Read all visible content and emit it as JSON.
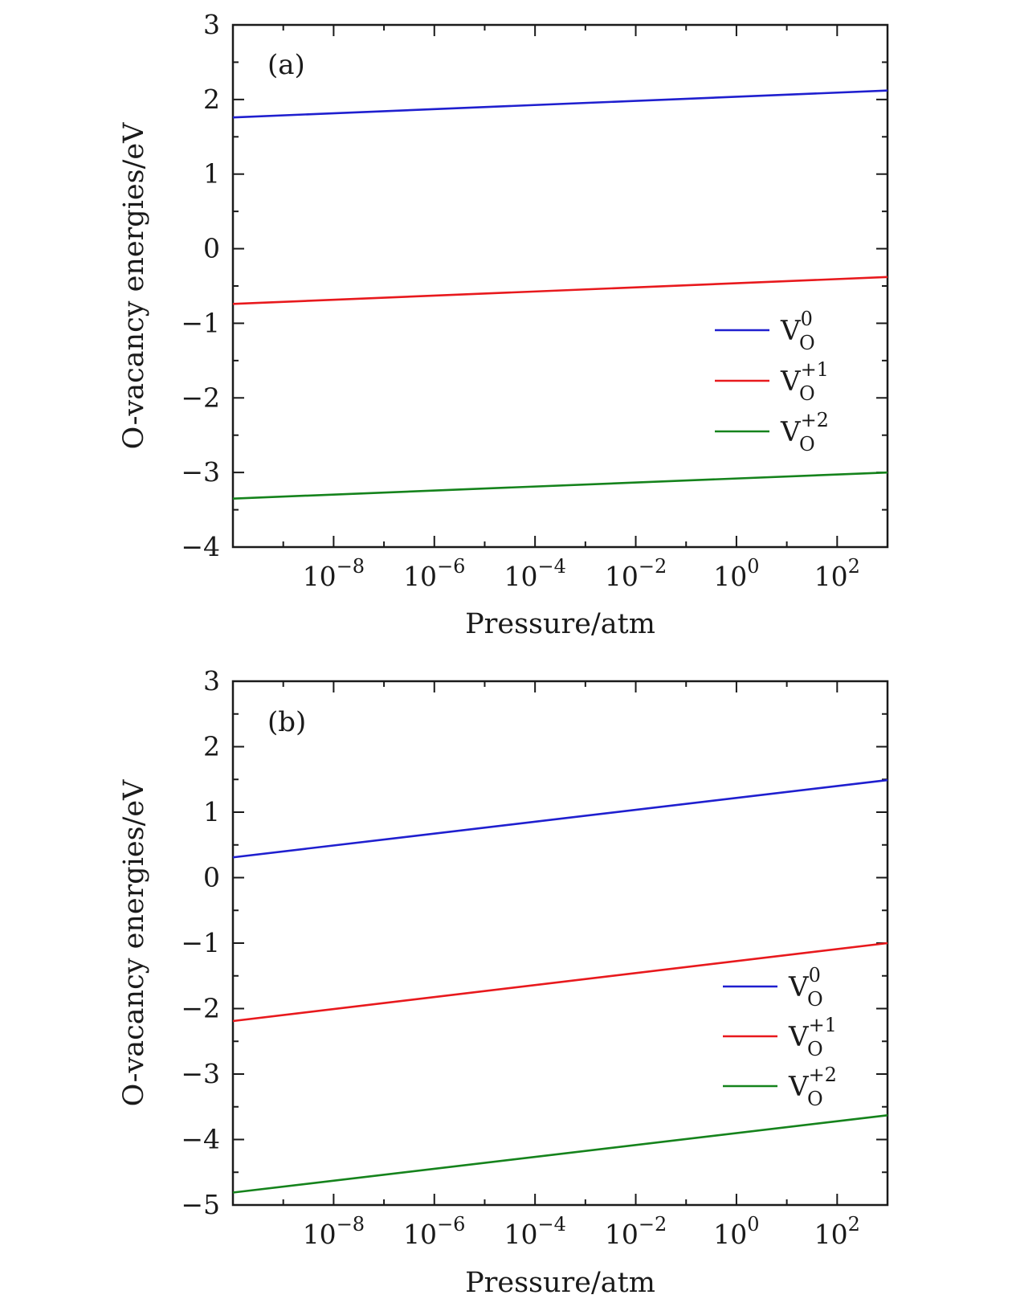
{
  "chart_data": [
    {
      "type": "line",
      "panel_label": "(a)",
      "xlabel": "Pressure/atm",
      "ylabel": "O-vacancy energies/eV",
      "x_scale": "log",
      "xlim_exponent": [
        -10,
        3
      ],
      "ylim": [
        -4,
        3
      ],
      "y_ticks": [
        "3",
        "2",
        "1",
        "0",
        "−1",
        "−2",
        "−3",
        "−4"
      ],
      "x_ticks": [
        {
          "base": "10",
          "exp": "−8"
        },
        {
          "base": "10",
          "exp": "−6"
        },
        {
          "base": "10",
          "exp": "−4"
        },
        {
          "base": "10",
          "exp": "−2"
        },
        {
          "base": "10",
          "exp": "0"
        },
        {
          "base": "10",
          "exp": "2"
        }
      ],
      "legend_position": "right",
      "series": [
        {
          "name_main": "V",
          "name_sub": "O",
          "name_sup": "0",
          "color": "#1f1fcf",
          "x_exp": [
            -10,
            3
          ],
          "y": [
            1.76,
            2.12
          ]
        },
        {
          "name_main": "V",
          "name_sub": "O",
          "name_sup": "+1",
          "color": "#e8191d",
          "x_exp": [
            -10,
            3
          ],
          "y": [
            -0.74,
            -0.38
          ]
        },
        {
          "name_main": "V",
          "name_sub": "O",
          "name_sup": "+2",
          "color": "#15831c",
          "x_exp": [
            -10,
            3
          ],
          "y": [
            -3.35,
            -3.0
          ]
        }
      ]
    },
    {
      "type": "line",
      "panel_label": "(b)",
      "xlabel": "Pressure/atm",
      "ylabel": "O-vacancy energies/eV",
      "x_scale": "log",
      "xlim_exponent": [
        -10,
        3
      ],
      "ylim": [
        -5,
        3
      ],
      "y_ticks": [
        "3",
        "2",
        "1",
        "0",
        "−1",
        "−2",
        "−3",
        "−4",
        "−5"
      ],
      "x_ticks": [
        {
          "base": "10",
          "exp": "−8"
        },
        {
          "base": "10",
          "exp": "−6"
        },
        {
          "base": "10",
          "exp": "−4"
        },
        {
          "base": "10",
          "exp": "−2"
        },
        {
          "base": "10",
          "exp": "0"
        },
        {
          "base": "10",
          "exp": "2"
        }
      ],
      "legend_position": "right",
      "series": [
        {
          "name_main": "V",
          "name_sub": "O",
          "name_sup": "0",
          "color": "#1f1fcf",
          "x_exp": [
            -10,
            3
          ],
          "y": [
            0.31,
            1.49
          ]
        },
        {
          "name_main": "V",
          "name_sub": "O",
          "name_sup": "+1",
          "color": "#e8191d",
          "x_exp": [
            -10,
            3
          ],
          "y": [
            -2.19,
            -1.0
          ]
        },
        {
          "name_main": "V",
          "name_sub": "O",
          "name_sup": "+2",
          "color": "#15831c",
          "x_exp": [
            -10,
            3
          ],
          "y": [
            -4.81,
            -3.63
          ]
        }
      ]
    }
  ]
}
